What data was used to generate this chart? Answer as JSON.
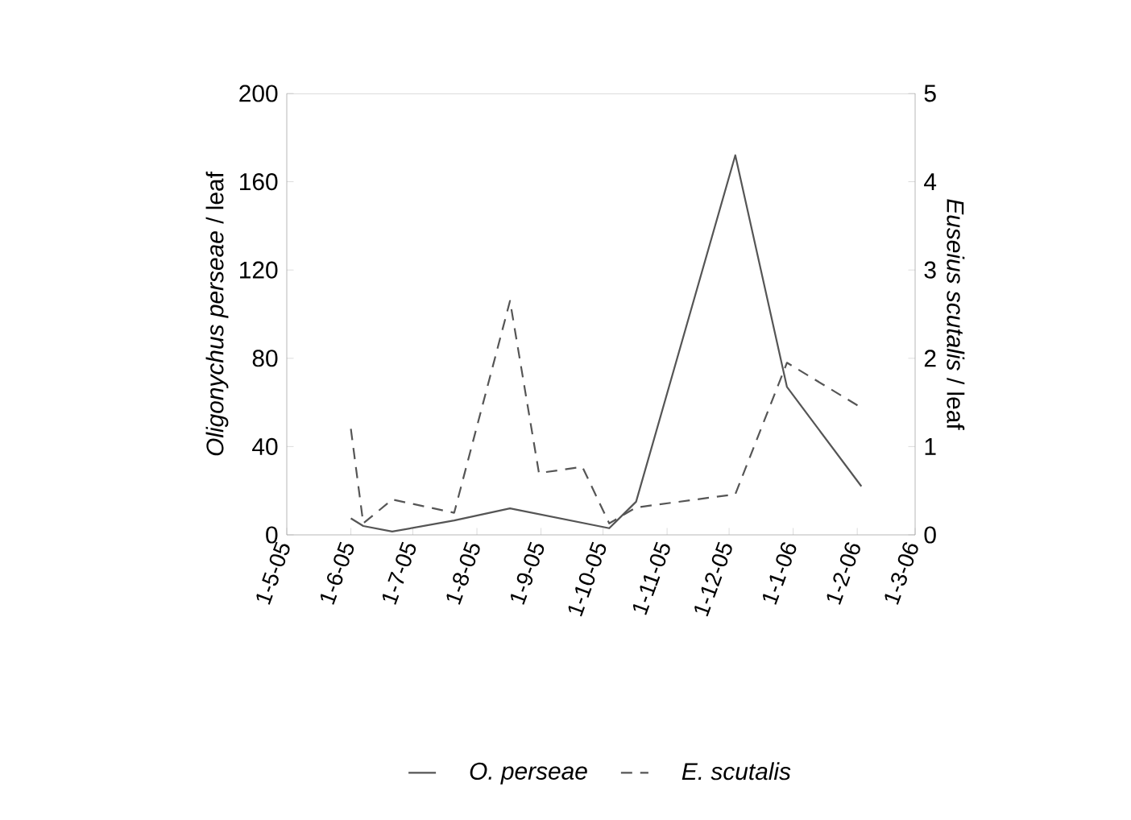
{
  "chart_data": {
    "type": "line",
    "ylabel": "*Oligonychus perseae*  / leaf",
    "y2label": "*Euseius scutalis*  / leaf",
    "xlim": [
      "2005-05-01",
      "2006-03-01"
    ],
    "xticks": [
      {
        "value": "2005-05-01",
        "label": "1-5-05"
      },
      {
        "value": "2005-06-01",
        "label": "1-6-05"
      },
      {
        "value": "2005-07-01",
        "label": "1-7-05"
      },
      {
        "value": "2005-08-01",
        "label": "1-8-05"
      },
      {
        "value": "2005-09-01",
        "label": "1-9-05"
      },
      {
        "value": "2005-10-01",
        "label": "1-10-05"
      },
      {
        "value": "2005-11-01",
        "label": "1-11-05"
      },
      {
        "value": "2005-12-01",
        "label": "1-12-05"
      },
      {
        "value": "2006-01-01",
        "label": "1-1-06"
      },
      {
        "value": "2006-02-01",
        "label": "1-2-06"
      },
      {
        "value": "2006-03-01",
        "label": "1-3-06"
      }
    ],
    "ylim": [
      0,
      200
    ],
    "yticks": [
      0,
      40,
      80,
      120,
      160,
      200
    ],
    "y2lim": [
      0,
      5
    ],
    "y2ticks": [
      0,
      1,
      2,
      3,
      4,
      5
    ],
    "legend": "bottom",
    "grid": false,
    "marker": "none",
    "series": [
      {
        "name": "O. perseae",
        "color": "#555555",
        "line_style": "solid",
        "x": [
          "2005-06-01",
          "2005-06-07",
          "2005-06-21",
          "2005-07-21",
          "2005-08-17",
          "2005-10-04",
          "2005-10-17",
          "2005-12-04",
          "2005-12-29",
          "2006-02-03"
        ],
        "values": [
          7.5,
          4,
          1.5,
          6.5,
          12,
          3,
          15,
          172,
          67,
          22
        ]
      },
      {
        "name": "E. scutalis",
        "color": "#555555",
        "line_style": "dashed",
        "axis": "y2",
        "x": [
          "2005-06-01",
          "2005-06-07",
          "2005-06-21",
          "2005-07-21",
          "2005-08-17",
          "2005-08-31",
          "2005-09-21",
          "2005-10-04",
          "2005-10-17",
          "2005-12-04",
          "2005-12-29",
          "2006-02-03"
        ],
        "values": [
          1.2,
          0.13,
          0.4,
          0.25,
          2.65,
          0.7,
          0.77,
          0.13,
          0.31,
          0.46,
          1.95,
          1.44
        ]
      }
    ]
  }
}
